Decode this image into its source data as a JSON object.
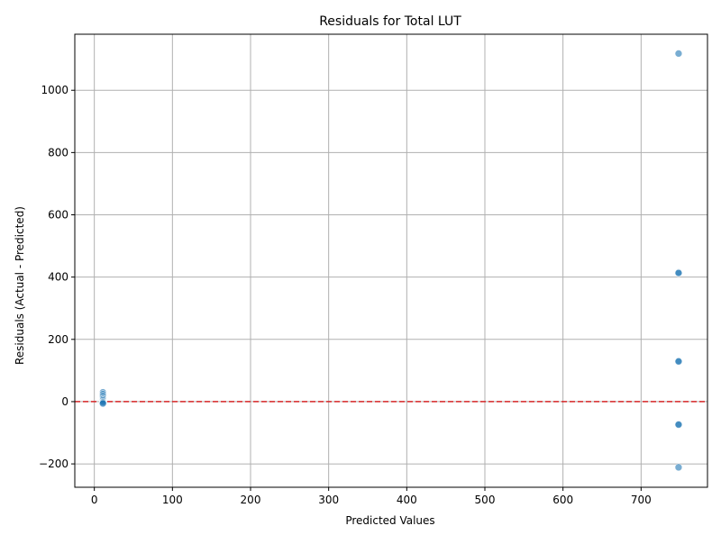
{
  "chart_data": {
    "type": "scatter",
    "title": "Residuals for Total LUT",
    "xlabel": "Predicted Values",
    "ylabel": "Residuals (Actual - Predicted)",
    "xlim": [
      -25,
      785
    ],
    "ylim": [
      -275,
      1180
    ],
    "xticks": [
      0,
      100,
      200,
      300,
      400,
      500,
      600,
      700
    ],
    "yticks": [
      -200,
      0,
      200,
      400,
      600,
      800,
      1000
    ],
    "grid": true,
    "reference_line": {
      "y": 0,
      "color": "#d62728",
      "style": "dashed"
    },
    "point_color": "#1f77b4",
    "points": [
      {
        "x": 748,
        "y": 1118
      },
      {
        "x": 748,
        "y": 415
      },
      {
        "x": 748,
        "y": 413
      },
      {
        "x": 748,
        "y": 131
      },
      {
        "x": 748,
        "y": 129
      },
      {
        "x": 748,
        "y": -72
      },
      {
        "x": 748,
        "y": -74
      },
      {
        "x": 748,
        "y": -211
      },
      {
        "x": 11,
        "y": 30
      },
      {
        "x": 11,
        "y": 24
      },
      {
        "x": 11,
        "y": 18
      },
      {
        "x": 11,
        "y": 12
      },
      {
        "x": 11,
        "y": 8
      },
      {
        "x": 11,
        "y": 4
      },
      {
        "x": 11,
        "y": 0
      },
      {
        "x": 11,
        "y": -3
      },
      {
        "x": 11,
        "y": -6
      }
    ]
  }
}
